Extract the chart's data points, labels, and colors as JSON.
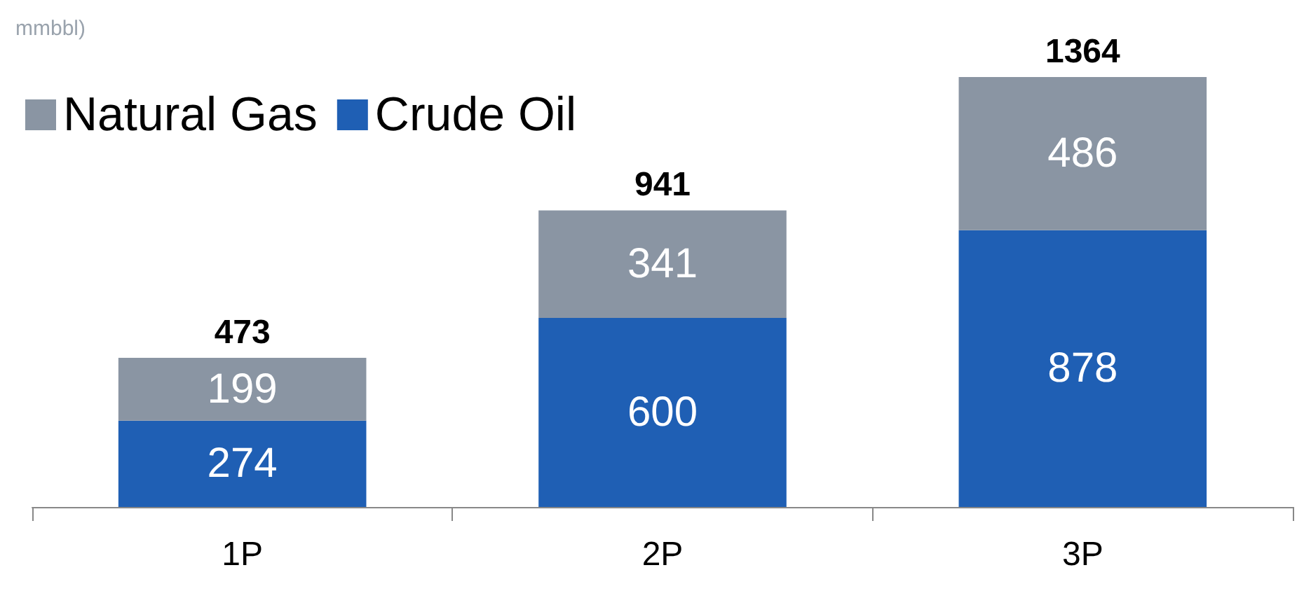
{
  "chart_data": {
    "type": "bar",
    "title": "mmbbl)",
    "categories": [
      "1P",
      "2P",
      "3P"
    ],
    "stacked": true,
    "data_labels": true,
    "legend": "top left",
    "series": [
      {
        "name": "Crude Oil",
        "color": "#1f5fb4",
        "values": [
          274,
          600,
          878
        ]
      },
      {
        "name": "Natural Gas",
        "color": "#8a95a3",
        "values": [
          199,
          341,
          486
        ]
      }
    ],
    "totals": [
      "473",
      "941",
      "1364"
    ]
  }
}
